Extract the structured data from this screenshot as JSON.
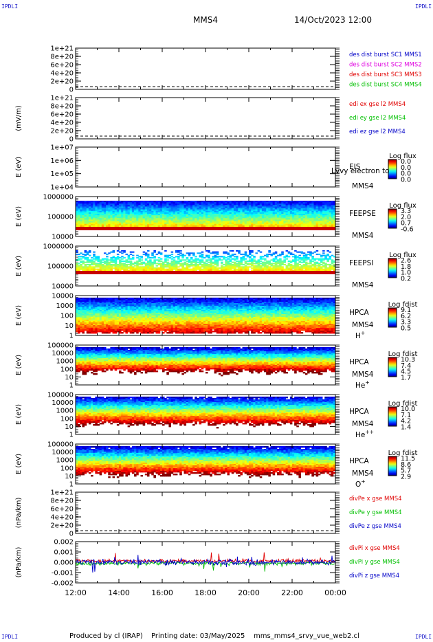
{
  "corner_label": "IPDLI",
  "header": {
    "title": "MMS4",
    "datetime": "14/Oct/2023 12:00"
  },
  "footer": {
    "produced": "Produced by  cl (IRAP)",
    "printing": "Printing date: 03/May/2025",
    "script": "mms_mms4_srvy_vue_web2.cl"
  },
  "colors": {
    "red": "#e00000",
    "green": "#00c000",
    "blue": "#0000c8",
    "magenta": "#e000e0"
  },
  "chart_data": [
    {
      "type": "line",
      "ylabel": "",
      "yticks": [
        "1e+21",
        "8e+20",
        "6e+20",
        "4e+20",
        "2e+20",
        "0"
      ],
      "ylim": [
        0,
        1e+21
      ],
      "grid": false,
      "series": [
        {
          "name": "des dist burst SC1 MMS1",
          "color": "#0000c8"
        },
        {
          "name": "des dist burst SC2 MMS2",
          "color": "#e000e0"
        },
        {
          "name": "des dist burst SC3 MMS3",
          "color": "#e00000"
        },
        {
          "name": "des dist burst SC4 MMS4",
          "color": "#00c000"
        }
      ]
    },
    {
      "type": "line",
      "ylabel": "(mV/m)",
      "yticks": [
        "1e+21",
        "8e+20",
        "6e+20",
        "4e+20",
        "2e+20",
        "0"
      ],
      "ylim": [
        0,
        1e+21
      ],
      "series": [
        {
          "name": "edi ex gse l2 MMS4",
          "color": "#e00000"
        },
        {
          "name": "edi ey gse l2 MMS4",
          "color": "#00c000"
        },
        {
          "name": "edi ez gse l2 MMS4",
          "color": "#0000c8"
        }
      ]
    },
    {
      "type": "heatmap",
      "ylabel": "E (eV)",
      "yticks": [
        "1e+07",
        "1e+06",
        "1e+05",
        "1e+04"
      ],
      "ylim": [
        10000.0,
        10000000.0
      ],
      "log_y": true,
      "labels": [
        "EIS",
        "MMS4"
      ],
      "overlay_text": "Lvvy electron to",
      "colorbar": {
        "title": "Log flux",
        "ticks": [
          "0.0",
          "0.0",
          "0.0",
          "0.0"
        ]
      }
    },
    {
      "type": "heatmap",
      "ylabel": "E (eV)",
      "yticks": [
        "1000000",
        "100000",
        "10000"
      ],
      "ylim": [
        10000.0,
        1000000.0
      ],
      "log_y": true,
      "labels": [
        "FEEPSE",
        "MMS4"
      ],
      "colorbar": {
        "title": "Log flux",
        "ticks": [
          "3.3",
          "2.0",
          "0.7",
          "-0.6"
        ]
      }
    },
    {
      "type": "heatmap",
      "ylabel": "E (eV)",
      "yticks": [
        "1000000",
        "100000",
        "10000"
      ],
      "ylim": [
        10000.0,
        1000000.0
      ],
      "log_y": true,
      "labels": [
        "FEEPSI",
        "MMS4"
      ],
      "colorbar": {
        "title": "Log flux",
        "ticks": [
          "2.6",
          "1.8",
          "1.0",
          "0.2"
        ]
      }
    },
    {
      "type": "heatmap",
      "ylabel": "E (eV)",
      "yticks": [
        "10000",
        "1000",
        "100",
        "10",
        "1"
      ],
      "ylim": [
        1,
        30000.0
      ],
      "log_y": true,
      "labels": [
        "HPCA",
        "MMS4"
      ],
      "species": "H",
      "species_sup": "+",
      "colorbar": {
        "title": "Log fdist",
        "ticks": [
          "9.1",
          "6.2",
          "3.3",
          "0.5"
        ]
      }
    },
    {
      "type": "heatmap",
      "ylabel": "E (eV)",
      "yticks": [
        "100000",
        "10000",
        "1000",
        "100",
        "10",
        "1"
      ],
      "ylim": [
        1,
        100000.0
      ],
      "log_y": true,
      "labels": [
        "HPCA",
        "MMS4"
      ],
      "species": "He",
      "species_sup": "+",
      "colorbar": {
        "title": "Log fdist",
        "ticks": [
          "10.3",
          "7.4",
          "4.5",
          "1.7"
        ]
      }
    },
    {
      "type": "heatmap",
      "ylabel": "E (eV)",
      "yticks": [
        "100000",
        "10000",
        "1000",
        "100",
        "10",
        "1"
      ],
      "ylim": [
        1,
        100000.0
      ],
      "log_y": true,
      "labels": [
        "HPCA",
        "MMS4"
      ],
      "species": "He",
      "species_sup": "++",
      "colorbar": {
        "title": "Log fdist",
        "ticks": [
          "10.0",
          "7.1",
          "4.2",
          "1.4"
        ]
      }
    },
    {
      "type": "heatmap",
      "ylabel": "E (eV)",
      "yticks": [
        "100000",
        "10000",
        "1000",
        "100",
        "10",
        "1"
      ],
      "ylim": [
        1,
        100000.0
      ],
      "log_y": true,
      "labels": [
        "HPCA",
        "MMS4"
      ],
      "species": "O",
      "species_sup": "+",
      "colorbar": {
        "title": "Log fdist",
        "ticks": [
          "11.5",
          "8.6",
          "5.7",
          "2.9"
        ]
      }
    },
    {
      "type": "line",
      "ylabel": "(nPa/km)",
      "yticks": [
        "1e+21",
        "8e+20",
        "6e+20",
        "4e+20",
        "2e+20",
        "0"
      ],
      "ylim": [
        0,
        1e+21
      ],
      "series": [
        {
          "name": "divPe x gse MMS4",
          "color": "#e00000"
        },
        {
          "name": "divPe y gse MMS4",
          "color": "#00c000"
        },
        {
          "name": "divPe z gse MMS4",
          "color": "#0000c8"
        }
      ]
    },
    {
      "type": "line",
      "ylabel": "(nPa/km)",
      "yticks": [
        "0.002",
        "0.001",
        "0.000",
        "-0.001",
        "-0.002"
      ],
      "ylim": [
        -0.0025,
        0.0025
      ],
      "xticks": [
        "12:00",
        "14:00",
        "16:00",
        "18:00",
        "20:00",
        "22:00",
        "00:00"
      ],
      "series": [
        {
          "name": "divPi x gse MMS4",
          "color": "#e00000"
        },
        {
          "name": "divPi y gse MMS4",
          "color": "#00c000"
        },
        {
          "name": "divPi z gse MMS4",
          "color": "#0000c8"
        }
      ]
    }
  ]
}
